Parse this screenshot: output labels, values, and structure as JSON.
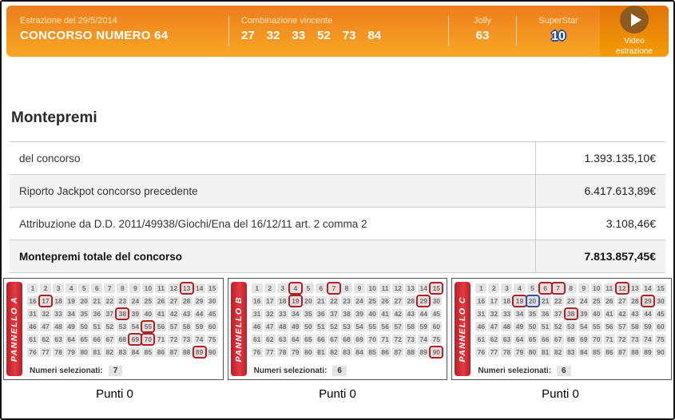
{
  "header": {
    "date_label": "Estrazione del 29/5/2014",
    "concorso": "CONCORSO NUMERO 64",
    "combo_label": "Combinazione vincente",
    "combo_numbers": [
      "27",
      "32",
      "33",
      "52",
      "73",
      "84"
    ],
    "jolly_label": "Jolly",
    "jolly_number": "63",
    "superstar_label": "SuperStar",
    "superstar_number": "10",
    "video_line1": "Video",
    "video_line2": "estrazione"
  },
  "montepremi": {
    "title": "Montepremi",
    "rows": [
      {
        "label": "del concorso",
        "value": "1.393.135,10€",
        "bold": false
      },
      {
        "label": "Riporto Jackpot concorso precedente",
        "value": "6.417.613,89€",
        "bold": false
      },
      {
        "label": "Attribuzione da D.D. 2011/49938/Giochi/Ena del 16/12/11 art. 2 comma 2",
        "value": "3.108,46€",
        "bold": false
      },
      {
        "label": "Montepremi totale del concorso",
        "value": "7.813.857,45€",
        "bold": true
      }
    ]
  },
  "grid": {
    "from": 1,
    "to": 90,
    "per_row": 15
  },
  "panels": [
    {
      "name": "PANNELLO A",
      "selected_red": [
        13,
        17,
        38,
        55,
        69,
        70,
        89
      ],
      "selected_blue": [],
      "numeri_label": "Numeri selezionati:",
      "count": "7",
      "punti": "Punti 0"
    },
    {
      "name": "PANNELLO B",
      "selected_red": [
        4,
        7,
        15,
        19,
        29,
        90
      ],
      "selected_blue": [],
      "numeri_label": "Numeri selezionati:",
      "count": "6",
      "punti": "Punti 0"
    },
    {
      "name": "PANNELLO C",
      "selected_red": [
        6,
        7,
        12,
        19,
        29,
        38
      ],
      "selected_blue": [
        20
      ],
      "numeri_label": "Numeri selezionati:",
      "count": "6",
      "punti": "Punti 0"
    }
  ],
  "colors": {
    "header_orange_top": "#ed7d1d",
    "header_orange_bottom": "#f8a724",
    "video_block_orange": "#e2750a",
    "panel_ribbon_red": "#c0222a",
    "selection_red": "#a8232b",
    "selection_blue": "#3b4e9c",
    "superstar_outline_blue": "#2b4ea0"
  }
}
